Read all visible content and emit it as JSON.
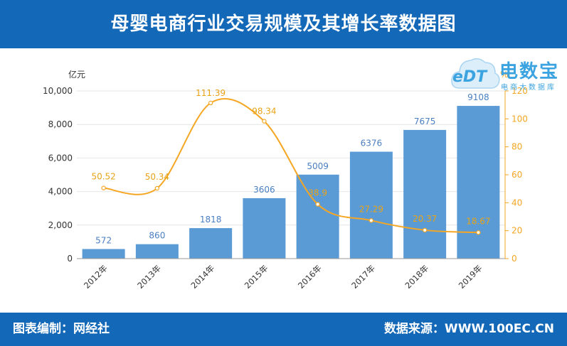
{
  "header": {
    "title": "母婴电商行业交易规模及其增长率数据图"
  },
  "footer": {
    "left_text": "图表编制：网经社",
    "right_text": "数据来源：WWW.100EC.CN"
  },
  "logo": {
    "edt_text": "eDT",
    "main_text": "电数宝",
    "sub_text": "电商大数据库",
    "accent_color": "#3ba3e0"
  },
  "colors": {
    "bar": "#5b9bd5",
    "line": "#f5a623",
    "bar_label": "#4a7fc1",
    "line_label": "#e8a317",
    "header_bg": "#1468b8",
    "grid": "#e6e6e6"
  },
  "chart_data": {
    "type": "bar",
    "categories": [
      "2012年",
      "2013年",
      "2014年",
      "2015年",
      "2016年",
      "2017年",
      "2018年",
      "2019年"
    ],
    "series": [
      {
        "type": "bar",
        "axis": "left",
        "values": [
          572,
          860,
          1818,
          3606,
          5009,
          6376,
          7675,
          9108
        ]
      },
      {
        "type": "line",
        "axis": "right",
        "smooth": true,
        "values": [
          50.52,
          50.34,
          111.39,
          98.34,
          38.9,
          27.29,
          20.37,
          18.67
        ]
      }
    ],
    "bar_labels": [
      "572",
      "860",
      "1818",
      "3606",
      "5009",
      "6376",
      "7675",
      "9108"
    ],
    "line_labels": [
      "50.52",
      "50.34",
      "111.39",
      "98.34",
      "38.9",
      "27.29",
      "20.37",
      "18.67"
    ],
    "y_left": {
      "unit": "亿元",
      "range": [
        0,
        10000
      ],
      "ticks": [
        "0",
        "2,000",
        "4,000",
        "6,000",
        "8,000",
        "10,000"
      ]
    },
    "y_right": {
      "unit": "%",
      "range": [
        0,
        120
      ],
      "ticks": [
        "0",
        "20",
        "40",
        "60",
        "80",
        "100",
        "120"
      ]
    },
    "grid": true,
    "legend": "none"
  }
}
